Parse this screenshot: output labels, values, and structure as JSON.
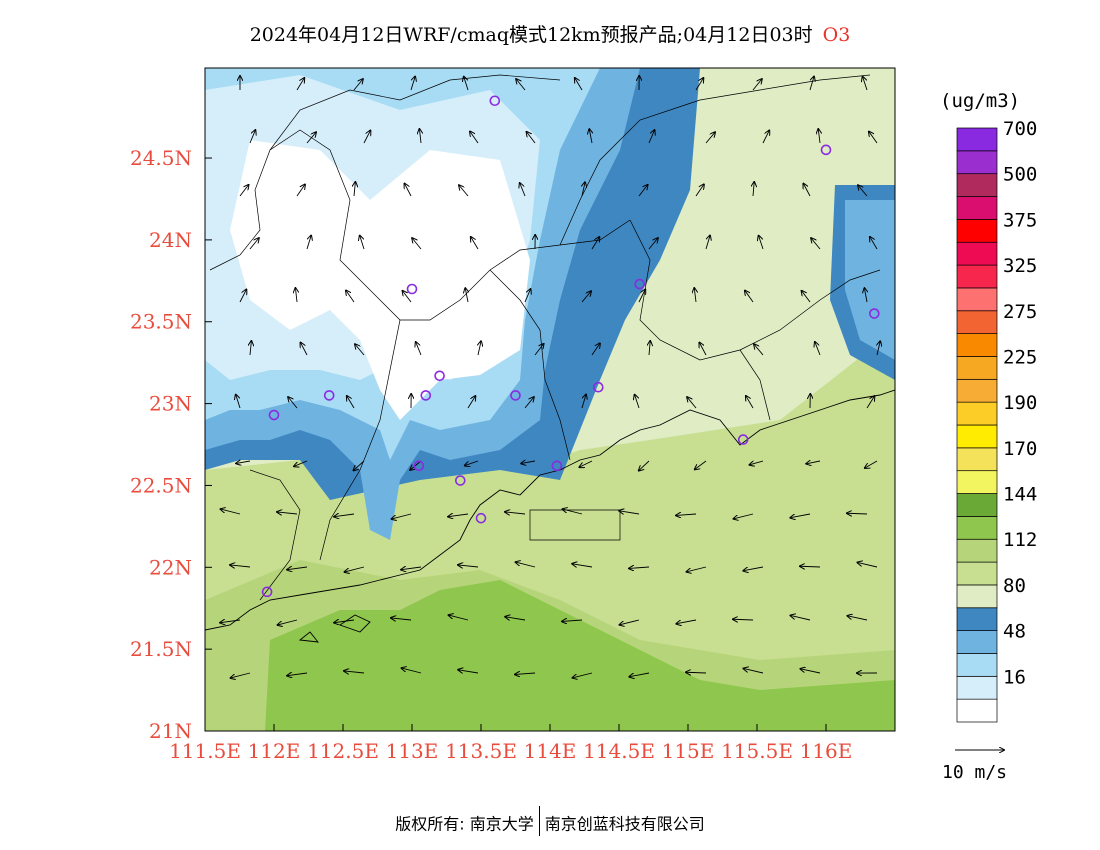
{
  "title": {
    "text": "2024年04月12日WRF/cmaq模式12km预报产品;04月12日03时",
    "pollutant": "O3"
  },
  "legend": {
    "unit": "(ug/m3)",
    "bins": [
      {
        "color": "#ffffff"
      },
      {
        "color": "#d6eefa",
        "label": "16"
      },
      {
        "color": "#a8dcf5"
      },
      {
        "color": "#6fb3e0",
        "label": "48"
      },
      {
        "color": "#3f87c0"
      },
      {
        "color": "#dfecc4",
        "label": "80"
      },
      {
        "color": "#c8df92"
      },
      {
        "color": "#b6d57a",
        "label": "112"
      },
      {
        "color": "#8ec64e"
      },
      {
        "color": "#6aa935",
        "label": "144"
      },
      {
        "color": "#f3f560"
      },
      {
        "color": "#f4e25a",
        "label": "170"
      },
      {
        "color": "#ffec00"
      },
      {
        "color": "#fccd26",
        "label": "190"
      },
      {
        "color": "#f7ac35"
      },
      {
        "color": "#f7a823",
        "label": "225"
      },
      {
        "color": "#f98a00"
      },
      {
        "color": "#f26431",
        "label": "275"
      },
      {
        "color": "#fd7170"
      },
      {
        "color": "#f6264d",
        "label": "325"
      },
      {
        "color": "#ef0a54"
      },
      {
        "color": "#ff0000",
        "label": "375"
      },
      {
        "color": "#d90e6e"
      },
      {
        "color": "#b12a5d",
        "label": "500"
      },
      {
        "color": "#9b2ecf"
      },
      {
        "color": "#8a2ae0",
        "label": "700"
      }
    ],
    "wind_reference": "10 m/s"
  },
  "axes": {
    "lon_ticks": [
      "111.5E",
      "112E",
      "112.5E",
      "113E",
      "113.5E",
      "114E",
      "114.5E",
      "115E",
      "115.5E",
      "116E"
    ],
    "lat_ticks": [
      "21N",
      "21.5N",
      "22N",
      "22.5N",
      "23N",
      "23.5N",
      "24N",
      "24.5N"
    ],
    "lon_range": [
      111.5,
      116.5
    ],
    "lat_range": [
      21.0,
      25.05
    ],
    "tick_color": "#e84c3d"
  },
  "stations": [
    {
      "lon": 113.6,
      "lat": 24.85
    },
    {
      "lon": 116.0,
      "lat": 24.55
    },
    {
      "lon": 113.0,
      "lat": 23.7
    },
    {
      "lon": 114.65,
      "lat": 23.73
    },
    {
      "lon": 116.35,
      "lat": 23.55
    },
    {
      "lon": 113.2,
      "lat": 23.17
    },
    {
      "lon": 112.4,
      "lat": 23.05
    },
    {
      "lon": 113.1,
      "lat": 23.05
    },
    {
      "lon": 113.75,
      "lat": 23.05
    },
    {
      "lon": 114.35,
      "lat": 23.1
    },
    {
      "lon": 112.0,
      "lat": 22.93
    },
    {
      "lon": 115.4,
      "lat": 22.78
    },
    {
      "lon": 113.05,
      "lat": 22.62
    },
    {
      "lon": 114.05,
      "lat": 22.62
    },
    {
      "lon": 113.35,
      "lat": 22.53
    },
    {
      "lon": 113.5,
      "lat": 22.3
    },
    {
      "lon": 111.95,
      "lat": 21.85
    }
  ],
  "footer": {
    "left": "版权所有: 南京大学",
    "right": "南京创蓝科技有限公司"
  }
}
